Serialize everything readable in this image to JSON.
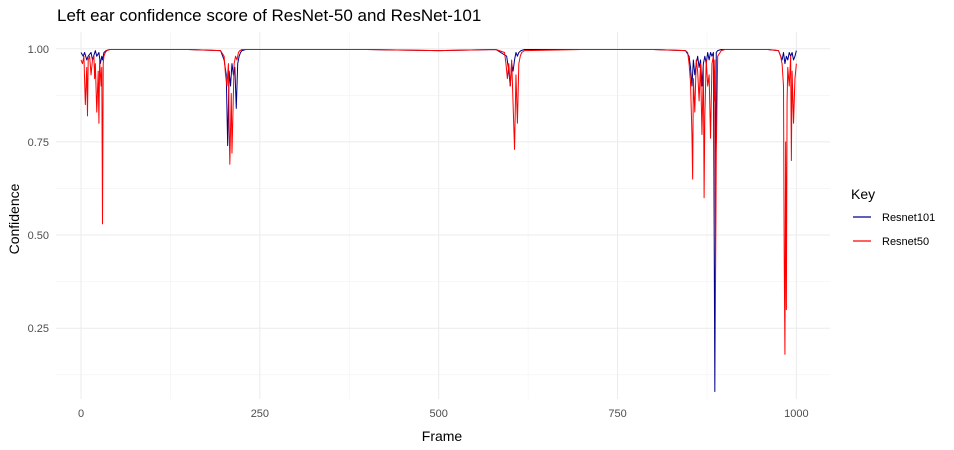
{
  "chart_data": {
    "type": "line",
    "title": "Left ear confidence score of ResNet-50 and ResNet-101",
    "xlabel": "Frame",
    "ylabel": "Confidence",
    "xlim": [
      -35,
      1047
    ],
    "ylim": [
      0.06,
      1.045
    ],
    "x_ticks": [
      0,
      250,
      500,
      750,
      1000
    ],
    "x_tick_labels": [
      "0",
      "250",
      "500",
      "750",
      "1000"
    ],
    "y_ticks": [
      0.25,
      0.5,
      0.75,
      1.0
    ],
    "y_tick_labels": [
      "0.25",
      "0.50",
      "0.75",
      "1.00"
    ],
    "grid": true,
    "legend": {
      "title": "Key",
      "position": "right"
    },
    "series": [
      {
        "name": "Resnet101",
        "color": "#00008B",
        "x": [
          0,
          3,
          5,
          8,
          10,
          14,
          16,
          20,
          22,
          25,
          27,
          29,
          30,
          32,
          35,
          40,
          60,
          100,
          150,
          195,
          200,
          203,
          205,
          207,
          209,
          211,
          213,
          215,
          217,
          219,
          221,
          223,
          225,
          230,
          300,
          400,
          500,
          580,
          595,
          598,
          600,
          602,
          604,
          606,
          608,
          610,
          612,
          615,
          620,
          700,
          800,
          845,
          850,
          852,
          854,
          856,
          858,
          860,
          862,
          864,
          866,
          868,
          870,
          872,
          874,
          876,
          878,
          880,
          882,
          884,
          886,
          888,
          890,
          895,
          900,
          960,
          975,
          978,
          980,
          982,
          984,
          986,
          988,
          990,
          992,
          994,
          996,
          998,
          1000
        ],
        "y": [
          0.99,
          0.98,
          0.99,
          0.97,
          0.98,
          0.99,
          0.97,
          0.995,
          0.98,
          0.99,
          0.96,
          0.98,
          0.97,
          0.99,
          0.995,
          0.998,
          0.998,
          0.998,
          0.998,
          0.995,
          0.97,
          0.93,
          0.74,
          0.94,
          0.9,
          0.96,
          0.93,
          0.95,
          0.84,
          0.96,
          0.98,
          0.99,
          0.995,
          0.998,
          0.998,
          0.998,
          0.995,
          0.998,
          0.98,
          0.94,
          0.9,
          0.96,
          0.94,
          0.97,
          0.99,
          0.98,
          0.99,
          0.995,
          0.998,
          0.998,
          0.998,
          0.995,
          0.98,
          0.95,
          0.9,
          0.97,
          0.93,
          0.96,
          0.98,
          0.95,
          0.97,
          0.9,
          0.96,
          0.98,
          0.96,
          0.99,
          0.97,
          0.99,
          0.98,
          0.99,
          0.08,
          0.99,
          0.995,
          0.998,
          0.998,
          0.998,
          0.995,
          0.98,
          0.97,
          0.99,
          0.96,
          0.98,
          0.97,
          0.99,
          0.98,
          0.99,
          0.97,
          0.98,
          0.995
        ]
      },
      {
        "name": "Resnet50",
        "color": "#FF0000",
        "x": [
          0,
          2,
          4,
          6,
          8,
          9,
          10,
          12,
          14,
          16,
          18,
          19,
          20,
          22,
          24,
          25,
          26,
          28,
          29,
          30,
          31,
          32,
          34,
          36,
          40,
          60,
          100,
          150,
          195,
          200,
          202,
          204,
          206,
          207,
          208,
          210,
          211,
          212,
          214,
          216,
          218,
          220,
          222,
          225,
          230,
          300,
          400,
          500,
          580,
          592,
          594,
          596,
          598,
          600,
          602,
          604,
          606,
          608,
          610,
          612,
          614,
          616,
          620,
          700,
          800,
          845,
          848,
          850,
          852,
          854,
          855,
          856,
          858,
          860,
          862,
          864,
          866,
          868,
          870,
          871,
          872,
          874,
          876,
          878,
          880,
          882,
          884,
          885,
          886,
          887,
          888,
          890,
          895,
          900,
          960,
          975,
          978,
          980,
          982,
          983,
          984,
          985,
          986,
          987,
          988,
          990,
          992,
          993,
          994,
          996,
          998,
          1000
        ],
        "y": [
          0.97,
          0.96,
          0.98,
          0.85,
          0.95,
          0.82,
          0.97,
          0.98,
          0.93,
          0.97,
          0.98,
          0.92,
          0.96,
          0.83,
          0.94,
          0.8,
          0.97,
          0.9,
          0.95,
          0.53,
          0.96,
          0.98,
          0.99,
          0.995,
          0.998,
          0.998,
          0.998,
          0.998,
          0.995,
          0.98,
          0.93,
          0.9,
          0.96,
          0.8,
          0.69,
          0.88,
          0.72,
          0.8,
          0.96,
          0.98,
          0.97,
          0.99,
          0.995,
          0.998,
          0.998,
          0.998,
          0.998,
          0.995,
          0.998,
          0.99,
          0.96,
          0.92,
          0.96,
          0.9,
          0.97,
          0.85,
          0.73,
          0.93,
          0.8,
          0.96,
          0.98,
          0.99,
          0.995,
          0.998,
          0.998,
          0.995,
          0.99,
          0.96,
          0.91,
          0.77,
          0.65,
          0.92,
          0.83,
          0.97,
          0.94,
          0.86,
          0.96,
          0.77,
          0.95,
          0.6,
          0.82,
          0.97,
          0.9,
          0.93,
          0.76,
          0.96,
          0.98,
          0.86,
          0.97,
          0.38,
          0.72,
          0.98,
          0.995,
          0.998,
          0.998,
          0.995,
          0.98,
          0.96,
          0.9,
          0.44,
          0.18,
          0.75,
          0.3,
          0.86,
          0.95,
          0.9,
          0.98,
          0.7,
          0.94,
          0.8,
          0.92,
          0.96
        ]
      }
    ]
  }
}
